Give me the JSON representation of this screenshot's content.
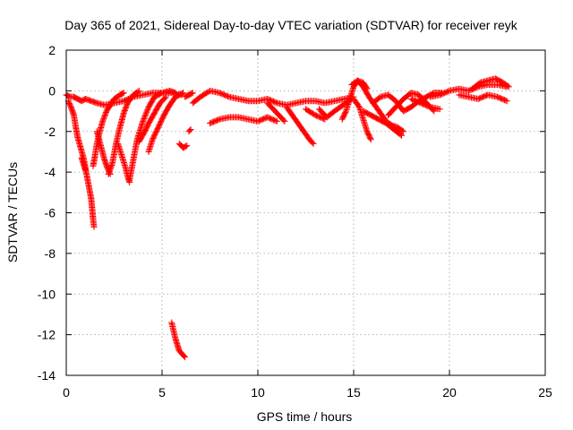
{
  "chart_data": {
    "type": "scatter",
    "title": "Day 365 of 2021, Sidereal Day-to-day VTEC variation (SDTVAR) for receiver reyk",
    "xlabel": "GPS time / hours",
    "ylabel": "SDTVAR / TECUs",
    "xlim": [
      0,
      25
    ],
    "ylim": [
      -14,
      2
    ],
    "xticks": [
      "0",
      "5",
      "10",
      "15",
      "20",
      "25"
    ],
    "yticks": [
      "2",
      "0",
      "-2",
      "-4",
      "-6",
      "-8",
      "-10",
      "-12",
      "-14"
    ],
    "xtick_values": [
      0,
      5,
      10,
      15,
      20,
      25
    ],
    "ytick_values": [
      2,
      0,
      -2,
      -4,
      -6,
      -8,
      -10,
      -12,
      -14
    ],
    "grid": true,
    "marker": "+",
    "series": [
      {
        "name": "SDTVAR",
        "color": "#ff0000",
        "tracks": [
          [
            [
              0.0,
              -0.2
            ],
            [
              0.2,
              -0.3
            ],
            [
              0.4,
              -0.3
            ],
            [
              0.6,
              -0.4
            ],
            [
              0.8,
              -0.5
            ],
            [
              1.0,
              -0.4
            ],
            [
              1.3,
              -0.5
            ],
            [
              1.6,
              -0.6
            ],
            [
              2.0,
              -0.7
            ],
            [
              2.5,
              -0.6
            ],
            [
              3.0,
              -0.5
            ],
            [
              3.5,
              -0.3
            ],
            [
              4.0,
              -0.2
            ],
            [
              4.5,
              -0.1
            ],
            [
              5.0,
              -0.1
            ],
            [
              5.5,
              -0.1
            ],
            [
              6.0,
              -0.2
            ]
          ],
          [
            [
              0.1,
              -0.5
            ],
            [
              0.25,
              -0.8
            ],
            [
              0.4,
              -1.2
            ],
            [
              0.5,
              -1.8
            ],
            [
              0.6,
              -2.3
            ],
            [
              0.75,
              -2.8
            ],
            [
              0.9,
              -3.3
            ],
            [
              1.0,
              -3.8
            ],
            [
              1.1,
              -4.3
            ],
            [
              1.2,
              -4.8
            ],
            [
              1.3,
              -5.3
            ],
            [
              1.35,
              -5.8
            ],
            [
              1.4,
              -6.3
            ],
            [
              1.45,
              -6.7
            ]
          ],
          [
            [
              0.8,
              -3.3
            ],
            [
              0.9,
              -3.6
            ],
            [
              1.0,
              -3.9
            ]
          ],
          [
            [
              1.4,
              -3.7
            ],
            [
              1.5,
              -3.2
            ],
            [
              1.6,
              -2.6
            ],
            [
              1.75,
              -2.0
            ],
            [
              1.9,
              -1.5
            ],
            [
              2.1,
              -1.0
            ],
            [
              2.3,
              -0.7
            ],
            [
              2.5,
              -0.4
            ],
            [
              2.8,
              -0.2
            ],
            [
              3.0,
              -0.1
            ]
          ],
          [
            [
              1.6,
              -2.0
            ],
            [
              1.8,
              -2.7
            ],
            [
              2.0,
              -3.4
            ],
            [
              2.15,
              -3.8
            ],
            [
              2.3,
              -4.1
            ]
          ],
          [
            [
              2.2,
              -4.1
            ],
            [
              2.4,
              -3.6
            ],
            [
              2.6,
              -2.6
            ],
            [
              2.8,
              -1.8
            ],
            [
              3.0,
              -1.1
            ],
            [
              3.2,
              -0.6
            ],
            [
              3.5,
              -0.2
            ],
            [
              3.8,
              0.0
            ]
          ],
          [
            [
              2.7,
              -2.6
            ],
            [
              2.9,
              -3.2
            ],
            [
              3.1,
              -3.8
            ],
            [
              3.2,
              -4.2
            ],
            [
              3.3,
              -4.5
            ]
          ],
          [
            [
              3.3,
              -4.4
            ],
            [
              3.5,
              -3.4
            ],
            [
              3.7,
              -2.4
            ],
            [
              4.0,
              -1.5
            ],
            [
              4.3,
              -0.8
            ],
            [
              4.6,
              -0.3
            ],
            [
              5.0,
              -0.1
            ],
            [
              5.4,
              0.0
            ],
            [
              5.7,
              -0.1
            ]
          ],
          [
            [
              3.8,
              -2.5
            ],
            [
              4.1,
              -2.0
            ],
            [
              4.3,
              -1.6
            ],
            [
              4.6,
              -1.1
            ],
            [
              4.9,
              -0.6
            ],
            [
              5.2,
              -0.3
            ]
          ],
          [
            [
              4.3,
              -3.0
            ],
            [
              4.5,
              -2.4
            ],
            [
              4.8,
              -1.8
            ],
            [
              5.1,
              -1.2
            ],
            [
              5.4,
              -0.7
            ],
            [
              5.7,
              -0.3
            ],
            [
              6.1,
              -0.1
            ]
          ],
          [
            [
              5.9,
              -2.6
            ],
            [
              6.1,
              -2.8
            ],
            [
              6.3,
              -2.7
            ]
          ],
          [
            [
              6.2,
              -0.3
            ],
            [
              6.4,
              -0.2
            ],
            [
              6.6,
              -0.1
            ]
          ],
          [
            [
              6.4,
              -2.0
            ],
            [
              6.5,
              -1.9
            ]
          ],
          [
            [
              5.5,
              -11.4
            ],
            [
              5.6,
              -11.8
            ],
            [
              5.7,
              -12.2
            ],
            [
              5.8,
              -12.5
            ],
            [
              5.9,
              -12.8
            ],
            [
              6.0,
              -12.9
            ],
            [
              6.1,
              -13.0
            ],
            [
              6.2,
              -13.1
            ]
          ],
          [
            [
              6.6,
              -0.6
            ],
            [
              7.0,
              -0.3
            ],
            [
              7.5,
              0.0
            ],
            [
              8.0,
              -0.1
            ],
            [
              8.5,
              -0.3
            ],
            [
              9.0,
              -0.4
            ],
            [
              9.5,
              -0.5
            ],
            [
              10.0,
              -0.5
            ],
            [
              10.5,
              -0.4
            ],
            [
              11.0,
              -0.6
            ],
            [
              11.5,
              -0.7
            ],
            [
              12.0,
              -0.6
            ],
            [
              12.5,
              -0.5
            ],
            [
              13.0,
              -0.5
            ],
            [
              13.5,
              -0.6
            ],
            [
              14.0,
              -0.5
            ],
            [
              14.5,
              -0.4
            ],
            [
              15.0,
              -0.3
            ]
          ],
          [
            [
              7.5,
              -1.6
            ],
            [
              8.0,
              -1.4
            ],
            [
              8.5,
              -1.3
            ],
            [
              9.0,
              -1.3
            ],
            [
              9.5,
              -1.4
            ],
            [
              10.0,
              -1.5
            ],
            [
              10.5,
              -1.3
            ],
            [
              11.0,
              -1.5
            ]
          ],
          [
            [
              10.5,
              -0.6
            ],
            [
              10.8,
              -0.9
            ],
            [
              11.1,
              -1.2
            ],
            [
              11.4,
              -1.5
            ]
          ],
          [
            [
              11.5,
              -0.8
            ],
            [
              11.8,
              -1.2
            ],
            [
              12.1,
              -1.6
            ],
            [
              12.4,
              -2.0
            ],
            [
              12.7,
              -2.4
            ],
            [
              12.9,
              -2.6
            ]
          ],
          [
            [
              12.5,
              -0.9
            ],
            [
              13.0,
              -1.2
            ],
            [
              13.5,
              -1.4
            ]
          ],
          [
            [
              13.2,
              -0.9
            ],
            [
              13.6,
              -1.3
            ],
            [
              14.0,
              -1.0
            ],
            [
              14.3,
              -0.8
            ],
            [
              14.6,
              -0.6
            ],
            [
              14.9,
              -0.4
            ]
          ],
          [
            [
              14.4,
              -1.4
            ],
            [
              14.6,
              -1.0
            ],
            [
              14.8,
              -0.4
            ],
            [
              15.0,
              0.2
            ],
            [
              15.2,
              0.5
            ],
            [
              15.5,
              0.4
            ],
            [
              15.7,
              0.1
            ]
          ],
          [
            [
              15.0,
              -0.4
            ],
            [
              15.3,
              -0.8
            ],
            [
              15.5,
              -1.4
            ],
            [
              15.7,
              -2.0
            ],
            [
              15.9,
              -2.4
            ]
          ],
          [
            [
              14.9,
              0.3
            ],
            [
              15.2,
              0.5
            ],
            [
              15.5,
              0.2
            ],
            [
              15.8,
              -0.3
            ],
            [
              16.1,
              -0.7
            ],
            [
              16.4,
              -1.1
            ],
            [
              16.7,
              -1.5
            ],
            [
              17.0,
              -1.7
            ],
            [
              17.3,
              -1.8
            ],
            [
              17.6,
              -2.0
            ]
          ],
          [
            [
              15.5,
              -1.0
            ],
            [
              15.9,
              -1.2
            ],
            [
              16.3,
              -1.4
            ],
            [
              16.7,
              -1.6
            ],
            [
              17.1,
              -1.9
            ],
            [
              17.5,
              -2.2
            ]
          ],
          [
            [
              16.0,
              -0.6
            ],
            [
              16.4,
              -0.3
            ],
            [
              16.8,
              -0.2
            ],
            [
              17.2,
              -0.5
            ],
            [
              17.6,
              -1.0
            ],
            [
              18.0,
              -0.8
            ],
            [
              18.4,
              -0.5
            ],
            [
              18.8,
              -0.3
            ],
            [
              19.2,
              -0.1
            ],
            [
              19.6,
              -0.1
            ]
          ],
          [
            [
              16.8,
              -1.2
            ],
            [
              17.2,
              -0.8
            ],
            [
              17.6,
              -0.4
            ],
            [
              18.0,
              -0.1
            ],
            [
              18.4,
              -0.2
            ],
            [
              18.8,
              -0.6
            ],
            [
              19.2,
              -1.0
            ]
          ],
          [
            [
              18.0,
              -0.4
            ],
            [
              18.5,
              -0.6
            ],
            [
              19.0,
              -0.8
            ],
            [
              19.5,
              -0.9
            ]
          ],
          [
            [
              19.0,
              -0.3
            ],
            [
              19.5,
              -0.2
            ],
            [
              20.0,
              0.0
            ],
            [
              20.5,
              0.1
            ],
            [
              21.0,
              0.0
            ],
            [
              21.5,
              0.2
            ],
            [
              22.0,
              0.3
            ],
            [
              22.5,
              0.3
            ],
            [
              23.0,
              0.2
            ]
          ],
          [
            [
              20.5,
              -0.2
            ],
            [
              21.0,
              -0.3
            ],
            [
              21.5,
              -0.4
            ],
            [
              22.0,
              -0.2
            ],
            [
              22.5,
              -0.3
            ],
            [
              23.0,
              -0.5
            ]
          ],
          [
            [
              21.2,
              0.1
            ],
            [
              21.6,
              0.4
            ],
            [
              22.0,
              0.5
            ],
            [
              22.4,
              0.6
            ],
            [
              22.8,
              0.4
            ],
            [
              23.1,
              0.2
            ]
          ]
        ]
      }
    ]
  }
}
